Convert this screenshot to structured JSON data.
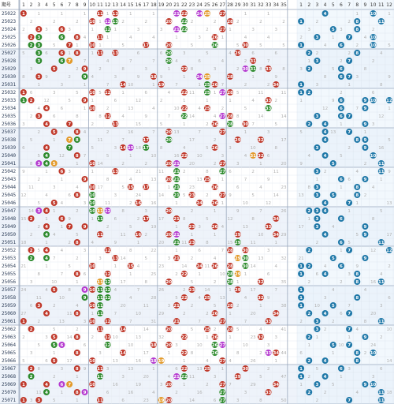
{
  "header": {
    "issue_label": "期号",
    "front_columns": [
      "1",
      "2",
      "3",
      "4",
      "5",
      "6",
      "7",
      "8",
      "9",
      "10",
      "11",
      "12",
      "13",
      "14",
      "15",
      "16",
      "17",
      "18",
      "19",
      "20",
      "21",
      "22",
      "23",
      "24",
      "25",
      "26",
      "27",
      "28",
      "29",
      "30",
      "31",
      "32",
      "33",
      "34",
      "35"
    ],
    "back_columns": [
      "1",
      "2",
      "3",
      "4",
      "5",
      "6",
      "7",
      "8",
      "9",
      "10",
      "11",
      "12"
    ]
  },
  "colors": {
    "front_ball": "#c0392b",
    "back_ball": "#1f78a8",
    "repeat_ball": "#2e8b2e",
    "consecutive_ball": "#e39a2a",
    "pair_ball": "#b53bd0",
    "band_a": "#ffffff",
    "band_b": "#eef3fa",
    "back_bg": "#eaf3fb"
  },
  "rows": [
    {
      "issue": "25022",
      "front": [
        1,
        11,
        13,
        21,
        22,
        24,
        25,
        27
      ],
      "back": [
        4,
        10
      ]
    },
    {
      "issue": "25023",
      "front": [
        10,
        12,
        13,
        20,
        22,
        28
      ],
      "back": [
        1,
        8,
        11
      ]
    },
    {
      "issue": "25024",
      "front": [
        3,
        6,
        12,
        21,
        22,
        27
      ],
      "back": [
        5,
        8
      ]
    },
    {
      "issue": "25025",
      "front": [
        2,
        3,
        6,
        8,
        11,
        26
      ],
      "back": [
        3,
        7,
        10
      ]
    },
    {
      "issue": "25026",
      "front": [
        2,
        3,
        7,
        10,
        17,
        20,
        26,
        30
      ],
      "back": [
        1,
        6,
        10
      ]
    },
    {
      "issue": "25027",
      "front": [
        3,
        6,
        8,
        11,
        13,
        20,
        29
      ],
      "back": [
        2,
        8
      ]
    },
    {
      "issue": "25028",
      "front": [
        3,
        6,
        7,
        20,
        31
      ],
      "back": [
        3,
        7
      ]
    },
    {
      "issue": "25029",
      "front": [
        5,
        9,
        22,
        30,
        31,
        33
      ],
      "back": [
        2,
        6
      ]
    },
    {
      "issue": "25030",
      "front": [
        3,
        9,
        18,
        24,
        25,
        28
      ],
      "back": [
        6,
        7
      ]
    },
    {
      "issue": "25031",
      "front": [
        14,
        19,
        25,
        26,
        34
      ],
      "back": [
        1
      ]
    },
    {
      "issue": "25032",
      "front": [
        1,
        10,
        12,
        22,
        25,
        27,
        28
      ],
      "back": [
        1,
        2
      ]
    },
    {
      "issue": "25033",
      "front": [
        1,
        2,
        9,
        33
      ],
      "back": [
        6,
        9,
        10,
        12
      ]
    },
    {
      "issue": "25034",
      "front": [
        4,
        10,
        22,
        25,
        33
      ],
      "back": [
        6,
        9
      ]
    },
    {
      "issue": "25035",
      "front": [
        3,
        12,
        22,
        27,
        28
      ],
      "back": [
        3,
        6,
        7
      ]
    },
    {
      "issue": "25036",
      "front": [
        4,
        7,
        13,
        26,
        28,
        30
      ],
      "back": [
        2,
        4,
        9
      ]
    },
    {
      "issue": "25037",
      "front": [
        5,
        8,
        20,
        27
      ],
      "back": [
        4,
        7
      ]
    },
    {
      "issue": "25038",
      "front": [
        7,
        8,
        17,
        20,
        29,
        32
      ],
      "back": [
        4,
        8,
        9
      ]
    },
    {
      "issue": "25039",
      "front": [
        4,
        7,
        14,
        15,
        17,
        26
      ],
      "back": [
        3,
        9
      ]
    },
    {
      "issue": "25040",
      "front": [
        4,
        8,
        22,
        31,
        32
      ],
      "back": [
        4,
        10
      ]
    },
    {
      "issue": "25041",
      "front": [
        3,
        4,
        5,
        10,
        20,
        21,
        27
      ],
      "back": [
        5,
        11
      ]
    },
    {
      "issue": "25042",
      "front": [
        6,
        13,
        21,
        27
      ],
      "back": [
        3,
        11
      ]
    },
    {
      "issue": "25043",
      "front": [
        9,
        20,
        21,
        25
      ],
      "back": [
        6,
        9
      ]
    },
    {
      "issue": "25044",
      "front": [
        10,
        15,
        17,
        21,
        26
      ],
      "back": [
        3,
        8
      ]
    },
    {
      "issue": "25045",
      "front": [
        8,
        10,
        21,
        23,
        27
      ],
      "back": [
        3,
        5,
        8
      ]
    },
    {
      "issue": "25046",
      "front": [
        5,
        10,
        16,
        24,
        26
      ],
      "back": [
        4,
        7
      ]
    },
    {
      "issue": "25047",
      "front": [
        3,
        4,
        10,
        11,
        12,
        20
      ],
      "back": [
        2,
        3,
        4
      ]
    },
    {
      "issue": "25048",
      "front": [
        2,
        6,
        11,
        17,
        21,
        34
      ],
      "back": [
        3,
        6
      ]
    },
    {
      "issue": "25049",
      "front": [
        4,
        7,
        9,
        23,
        26,
        33
      ],
      "back": [
        3,
        9
      ]
    },
    {
      "issue": "25050",
      "front": [
        4,
        11,
        16,
        20,
        21,
        29,
        34
      ],
      "back": [
        4,
        9
      ]
    },
    {
      "issue": "25051",
      "front": [
        8,
        21,
        23,
        29
      ],
      "back": [
        6,
        11
      ]
    },
    {
      "issue": "25052",
      "front": [
        2,
        4,
        12,
        28,
        30
      ],
      "back": [
        2,
        7,
        12
      ]
    },
    {
      "issue": "25053",
      "front": [
        2,
        4,
        13,
        21,
        29,
        30
      ],
      "back": [
        5,
        9
      ]
    },
    {
      "issue": "25054",
      "front": [
        10,
        15,
        24,
        26,
        28,
        30
      ],
      "back": [
        1,
        2,
        6
      ]
    },
    {
      "issue": "25055",
      "front": [
        8,
        12,
        22,
        28,
        29
      ],
      "back": [
        1,
        4,
        8
      ]
    },
    {
      "issue": "25056",
      "front": [
        11,
        12,
        20,
        28,
        32
      ],
      "back": [
        8,
        11
      ]
    },
    {
      "issue": "25057",
      "front": [
        5,
        9,
        10,
        11,
        12,
        23,
        29
      ],
      "back": [
        1
      ]
    },
    {
      "issue": "25058",
      "front": [
        9,
        11,
        12,
        22,
        25,
        32
      ],
      "back": [
        1,
        8
      ]
    },
    {
      "issue": "25059",
      "front": [
        3,
        10,
        11,
        21,
        28
      ],
      "back": [
        1,
        5
      ]
    },
    {
      "issue": "25060",
      "front": [
        4,
        8,
        11,
        26,
        34
      ],
      "back": [
        2,
        4,
        7
      ]
    },
    {
      "issue": "25061",
      "front": [
        1,
        10,
        12,
        21,
        27,
        33
      ],
      "back": [
        3,
        11
      ]
    },
    {
      "issue": "25062",
      "front": [
        2,
        11,
        14,
        20,
        25,
        28
      ],
      "back": [
        3,
        7
      ]
    },
    {
      "issue": "25063",
      "front": [
        5,
        8,
        12,
        22,
        26,
        32
      ],
      "back": [
        2,
        9
      ]
    },
    {
      "issue": "25064",
      "front": [
        5,
        6,
        12,
        18,
        20,
        26,
        27
      ],
      "back": [
        5,
        7
      ]
    },
    {
      "issue": "25065",
      "front": [
        8,
        14,
        22,
        26,
        33,
        34
      ],
      "back": [
        8,
        10
      ]
    },
    {
      "issue": "25066",
      "front": [
        5,
        10,
        18,
        19,
        27
      ],
      "back": [
        2,
        4,
        8
      ]
    },
    {
      "issue": "25067",
      "front": [
        2,
        8,
        11,
        22,
        25,
        30
      ],
      "back": [
        1,
        6
      ]
    },
    {
      "issue": "25068",
      "front": [
        2,
        11,
        21,
        22,
        29
      ],
      "back": [
        1,
        4
      ]
    },
    {
      "issue": "25069",
      "front": [
        1,
        4,
        6,
        7,
        10,
        20,
        27,
        34
      ],
      "back": [
        3,
        9,
        10
      ]
    },
    {
      "issue": "25070",
      "front": [
        4,
        8,
        9,
        27,
        33
      ],
      "back": [
        2,
        11
      ]
    },
    {
      "issue": "25071",
      "front": [
        1,
        3,
        11,
        19,
        20,
        27
      ],
      "back": [
        7,
        11
      ]
    }
  ]
}
